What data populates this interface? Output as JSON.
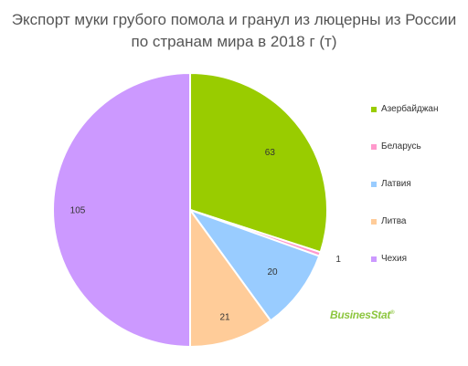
{
  "chart_data": {
    "type": "pie",
    "title_line1": "Экспорт муки грубого помола и гранул из люцерны из России",
    "title_line2": "по странам мира в 2018 г (т)",
    "slices": [
      {
        "label": "Азербайджан",
        "value": 63,
        "value_label": "63",
        "color": "#99cc00"
      },
      {
        "label": "Беларусь",
        "value": 1,
        "value_label": "1",
        "color": "#ff99cc"
      },
      {
        "label": "Латвия",
        "value": 20,
        "value_label": "20",
        "color": "#99ccff"
      },
      {
        "label": "Литва",
        "value": 21,
        "value_label": "21",
        "color": "#ffcc99"
      },
      {
        "label": "Чехия",
        "value": 105,
        "value_label": "105",
        "color": "#cc99ff"
      }
    ],
    "legend_position": "right"
  },
  "watermark": {
    "text": "BusinesStat",
    "symbol": "®"
  }
}
